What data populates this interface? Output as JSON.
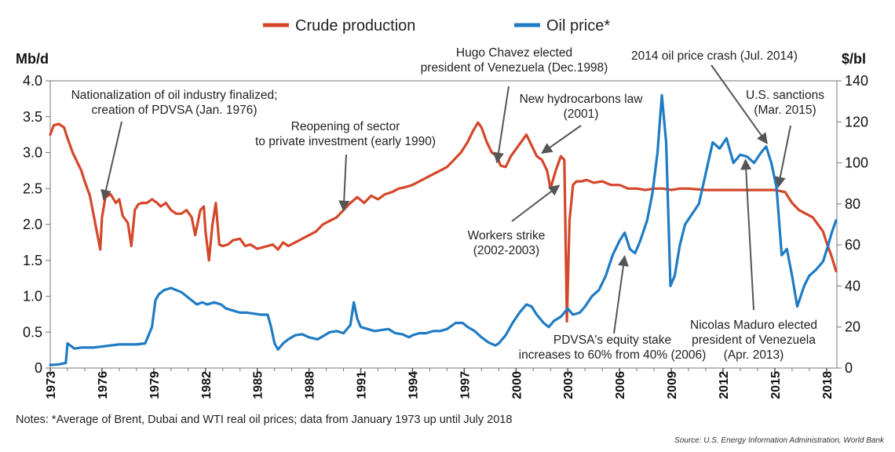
{
  "chart_data": {
    "type": "line",
    "legend": [
      {
        "name": "Crude production",
        "color": "#d4472a"
      },
      {
        "name": "Oil price*",
        "color": "#1f7bc4"
      }
    ],
    "y_left_label": "Mb/d",
    "y_right_label": "$/bl",
    "y_left_ticks": [
      "4.0",
      "3.5",
      "3.0",
      "2.5",
      "2.0",
      "1.5",
      "1.0",
      "0.5",
      "0"
    ],
    "y_right_ticks": [
      "140",
      "120",
      "100",
      "80",
      "60",
      "40",
      "20",
      "0"
    ],
    "ylim_left": [
      0,
      4.0
    ],
    "ylim_right": [
      0,
      140
    ],
    "x_ticks": [
      "1973",
      "1976",
      "1979",
      "1982",
      "1985",
      "1988",
      "1991",
      "1994",
      "1997",
      "2000",
      "2003",
      "2006",
      "2009",
      "2012",
      "2015",
      "2018"
    ],
    "xlim": [
      1973,
      2018.6
    ],
    "grid": false,
    "series": [
      {
        "name": "Crude production",
        "axis": "left",
        "color": "#d4472a",
        "x": [
          1973.0,
          1973.2,
          1973.5,
          1973.8,
          1974.0,
          1974.3,
          1974.5,
          1974.8,
          1975.0,
          1975.3,
          1975.5,
          1975.7,
          1975.9,
          1976.0,
          1976.2,
          1976.5,
          1976.8,
          1977.0,
          1977.2,
          1977.5,
          1977.7,
          1977.9,
          1978.1,
          1978.3,
          1978.6,
          1978.9,
          1979.2,
          1979.4,
          1979.7,
          1980.0,
          1980.3,
          1980.6,
          1980.9,
          1981.2,
          1981.4,
          1981.7,
          1981.9,
          1982.0,
          1982.2,
          1982.4,
          1982.6,
          1982.8,
          1983.0,
          1983.3,
          1983.6,
          1984.0,
          1984.3,
          1984.6,
          1985.0,
          1985.3,
          1985.6,
          1985.9,
          1986.2,
          1986.5,
          1986.8,
          1987.2,
          1987.6,
          1988.0,
          1988.4,
          1988.8,
          1989.2,
          1989.6,
          1990.0,
          1990.4,
          1990.8,
          1991.2,
          1991.6,
          1992.0,
          1992.4,
          1992.8,
          1993.2,
          1993.6,
          1994.0,
          1994.4,
          1994.8,
          1995.2,
          1995.6,
          1996.0,
          1996.4,
          1996.8,
          1997.2,
          1997.5,
          1997.8,
          1998.0,
          1998.3,
          1998.6,
          1998.9,
          1999.1,
          1999.4,
          1999.7,
          2000.0,
          2000.3,
          2000.6,
          2000.9,
          2001.2,
          2001.5,
          2001.8,
          2002.0,
          2002.3,
          2002.6,
          2002.8,
          2002.95,
          2003.1,
          2003.3,
          2003.5,
          2003.8,
          2004.1,
          2004.5,
          2005.0,
          2005.5,
          2006.0,
          2006.5,
          2007.0,
          2007.5,
          2008.0,
          2008.5,
          2009.0,
          2009.5,
          2010.0,
          2011.0,
          2012.0,
          2013.0,
          2014.0,
          2015.0,
          2015.6,
          2016.0,
          2016.4,
          2016.8,
          2017.2,
          2017.5,
          2017.8,
          2018.0,
          2018.3,
          2018.55
        ],
        "values": [
          3.25,
          3.38,
          3.4,
          3.35,
          3.2,
          3.0,
          2.9,
          2.75,
          2.6,
          2.4,
          2.15,
          1.9,
          1.65,
          2.1,
          2.38,
          2.42,
          2.3,
          2.35,
          2.12,
          2.02,
          1.7,
          2.2,
          2.28,
          2.3,
          2.3,
          2.35,
          2.3,
          2.25,
          2.3,
          2.2,
          2.15,
          2.15,
          2.2,
          2.1,
          1.85,
          2.2,
          2.25,
          1.9,
          1.5,
          2.0,
          2.3,
          1.72,
          1.7,
          1.72,
          1.78,
          1.8,
          1.7,
          1.72,
          1.66,
          1.68,
          1.7,
          1.72,
          1.65,
          1.75,
          1.7,
          1.75,
          1.8,
          1.85,
          1.9,
          2.0,
          2.05,
          2.1,
          2.2,
          2.3,
          2.38,
          2.3,
          2.4,
          2.35,
          2.42,
          2.45,
          2.5,
          2.52,
          2.55,
          2.6,
          2.65,
          2.7,
          2.75,
          2.8,
          2.9,
          3.0,
          3.15,
          3.3,
          3.42,
          3.35,
          3.15,
          3.0,
          2.95,
          2.82,
          2.8,
          2.95,
          3.05,
          3.15,
          3.25,
          3.1,
          2.95,
          2.9,
          2.75,
          2.5,
          2.75,
          2.95,
          2.9,
          0.65,
          2.05,
          2.55,
          2.6,
          2.6,
          2.62,
          2.58,
          2.6,
          2.55,
          2.55,
          2.5,
          2.5,
          2.48,
          2.5,
          2.5,
          2.48,
          2.5,
          2.5,
          2.48,
          2.48,
          2.48,
          2.48,
          2.48,
          2.45,
          2.3,
          2.2,
          2.15,
          2.1,
          2.0,
          1.9,
          1.75,
          1.55,
          1.35
        ]
      },
      {
        "name": "Oil price*",
        "axis": "right",
        "color": "#1f7bc4",
        "x": [
          1973.0,
          1973.5,
          1973.9,
          1974.0,
          1974.4,
          1974.8,
          1975.5,
          1976.0,
          1976.5,
          1977.0,
          1977.5,
          1978.0,
          1978.5,
          1978.9,
          1979.1,
          1979.3,
          1979.6,
          1980.0,
          1980.3,
          1980.6,
          1980.9,
          1981.2,
          1981.5,
          1981.8,
          1982.1,
          1982.5,
          1982.9,
          1983.2,
          1983.6,
          1984.0,
          1984.4,
          1984.8,
          1985.2,
          1985.6,
          1985.8,
          1986.0,
          1986.2,
          1986.5,
          1986.8,
          1987.2,
          1987.6,
          1988.0,
          1988.5,
          1988.9,
          1989.2,
          1989.6,
          1990.0,
          1990.4,
          1990.6,
          1990.8,
          1991.0,
          1991.4,
          1991.8,
          1992.2,
          1992.6,
          1993.0,
          1993.4,
          1993.8,
          1994.0,
          1994.4,
          1994.8,
          1995.2,
          1995.6,
          1996.0,
          1996.5,
          1996.9,
          1997.2,
          1997.6,
          1998.0,
          1998.4,
          1998.8,
          1999.0,
          1999.4,
          1999.8,
          2000.2,
          2000.6,
          2000.9,
          2001.2,
          2001.6,
          2001.9,
          2002.2,
          2002.6,
          2003.0,
          2003.3,
          2003.7,
          2004.0,
          2004.4,
          2004.8,
          2005.2,
          2005.6,
          2006.0,
          2006.3,
          2006.6,
          2006.9,
          2007.2,
          2007.6,
          2007.9,
          2008.2,
          2008.45,
          2008.7,
          2008.95,
          2009.2,
          2009.5,
          2009.8,
          2010.2,
          2010.6,
          2011.0,
          2011.4,
          2011.8,
          2012.2,
          2012.6,
          2013.0,
          2013.4,
          2013.8,
          2014.2,
          2014.5,
          2014.8,
          2015.1,
          2015.4,
          2015.7,
          2016.0,
          2016.3,
          2016.7,
          2017.0,
          2017.4,
          2017.8,
          2018.1,
          2018.3,
          2018.55
        ],
        "values": [
          1.5,
          1.8,
          2.5,
          12.0,
          9.5,
          10.0,
          10.0,
          10.5,
          11.0,
          11.5,
          11.5,
          11.5,
          12.0,
          20.0,
          33.0,
          36.0,
          38.0,
          39.0,
          38.0,
          37.0,
          35.0,
          33.0,
          31.0,
          32.0,
          31.0,
          32.0,
          31.0,
          29.0,
          28.0,
          27.0,
          27.0,
          26.5,
          26.0,
          26.0,
          20.0,
          12.0,
          9.0,
          12.0,
          14.0,
          16.0,
          16.5,
          15.0,
          14.0,
          16.0,
          17.5,
          18.0,
          17.0,
          21.0,
          32.0,
          24.0,
          20.0,
          19.0,
          18.0,
          18.5,
          19.0,
          17.0,
          16.5,
          15.0,
          16.0,
          17.0,
          17.0,
          18.0,
          18.0,
          19.0,
          22.0,
          22.0,
          20.0,
          18.0,
          15.0,
          12.5,
          11.0,
          12.0,
          16.0,
          22.0,
          27.0,
          31.0,
          30.0,
          26.0,
          22.0,
          20.0,
          23.0,
          25.0,
          29.0,
          26.0,
          27.0,
          30.0,
          35.0,
          38.0,
          45.0,
          55.0,
          62.0,
          66.0,
          58.0,
          56.0,
          62.0,
          72.0,
          85.0,
          105.0,
          133.0,
          110.0,
          40.0,
          45.0,
          60.0,
          70.0,
          75.0,
          80.0,
          95.0,
          110.0,
          107.0,
          112.0,
          100.0,
          104.0,
          103.0,
          100.0,
          105.0,
          108.0,
          100.0,
          88.0,
          55.0,
          58.0,
          45.0,
          30.0,
          40.0,
          45.0,
          48.0,
          52.0,
          60.0,
          66.0,
          72.0
        ]
      }
    ],
    "annotations": [
      {
        "lines": [
          "Nationalization of oil industry finalized;",
          "creation of PDVSA (Jan. 1976)"
        ],
        "x": 1976.1,
        "y_left": 2.3
      },
      {
        "lines": [
          "Reopening of sector",
          "to private investment (early 1990)"
        ],
        "x": 1990.0,
        "y_left": 2.15
      },
      {
        "lines": [
          "Hugo Chavez elected",
          "president of Venezuela (Dec.1998)"
        ],
        "x": 1998.9,
        "y_left": 2.82
      },
      {
        "lines": [
          "New hydrocarbons law",
          "(2001)"
        ],
        "x": 2001.5,
        "y_left": 2.95
      },
      {
        "lines": [
          "Workers strike",
          "(2002-2003)"
        ],
        "x": 2002.5,
        "y_left": 2.5
      },
      {
        "lines": [
          "2014 oil price crash (Jul. 2014)"
        ],
        "x": 2014.55,
        "y_right": 108
      },
      {
        "lines": [
          "U.S. sanctions",
          "(Mar. 2015)"
        ],
        "x": 2015.2,
        "y_left": 2.48
      },
      {
        "lines": [
          "PDVSA's equity stake",
          "increases to 60% from 40% (2006)"
        ],
        "x": 2006.3,
        "y_right": 53
      },
      {
        "lines": [
          "Nicolas Maduro elected",
          "president of Venezuela",
          "(Apr. 2013)"
        ],
        "x": 2013.3,
        "y_right": 100
      }
    ]
  },
  "notes": "Notes: *Average of Brent, Dubai and WTI real oil prices; data from January 1973 up until July 2018",
  "source": "Source: U.S. Energy Information Administration, World Bank"
}
